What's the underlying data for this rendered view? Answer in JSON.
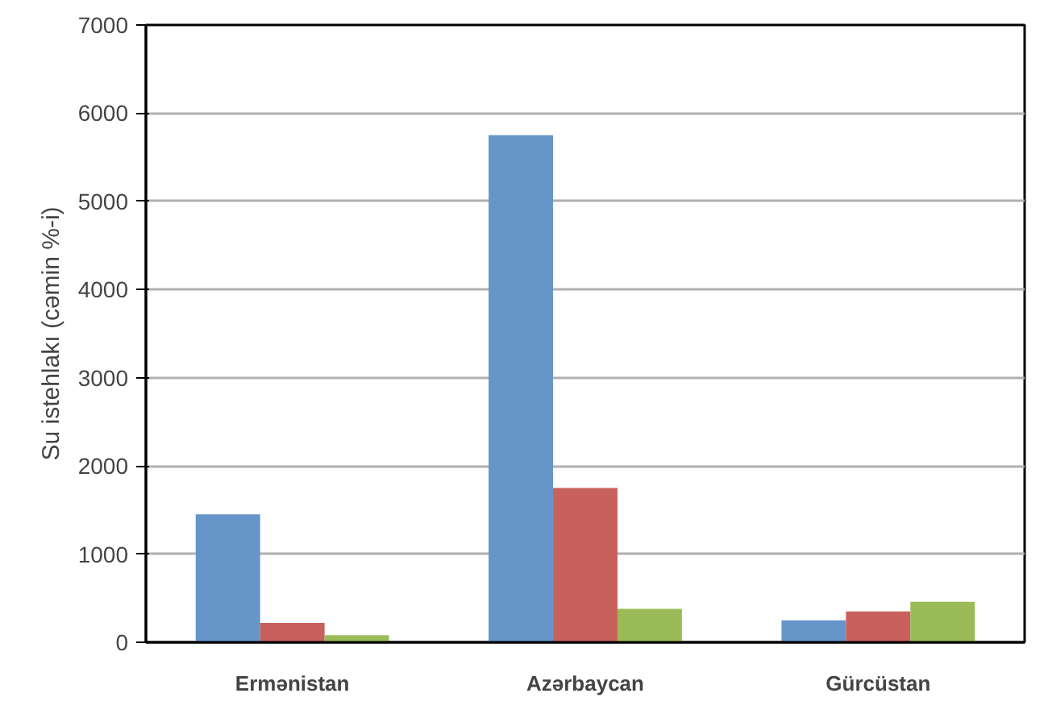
{
  "chart_data": {
    "type": "bar",
    "ylabel": "Su istehlakı (cəmin %-i)",
    "categories": [
      "Ermənistan",
      "Azərbaycan",
      "Gürcüstan"
    ],
    "series": [
      {
        "color": "#6695c9",
        "values": [
          1450,
          5750,
          250
        ]
      },
      {
        "color": "#c8605c",
        "values": [
          220,
          1750,
          350
        ]
      },
      {
        "color": "#9bbb59",
        "values": [
          80,
          380,
          460
        ]
      }
    ],
    "ylim": [
      0,
      7000
    ],
    "yticks": [
      0,
      1000,
      2000,
      3000,
      4000,
      5000,
      6000,
      7000
    ],
    "grid": "y"
  }
}
